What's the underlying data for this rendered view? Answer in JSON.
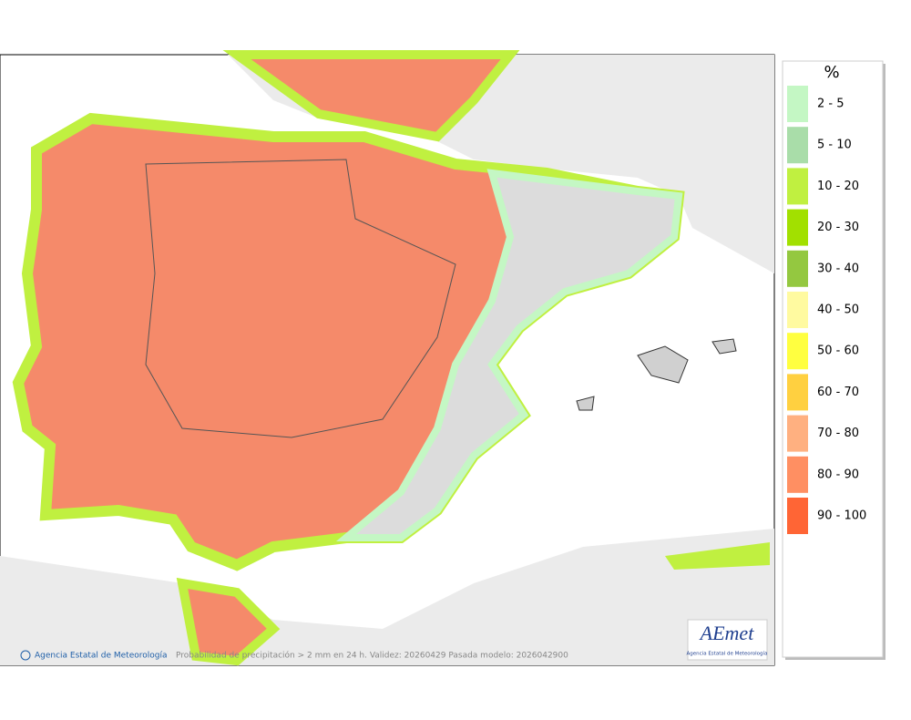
{
  "legend": {
    "title": "%",
    "items": [
      {
        "label": "2 - 5",
        "color": "#c4f7c4"
      },
      {
        "label": "5 - 10",
        "color": "#a9dda9"
      },
      {
        "label": "10 - 20",
        "color": "#c0f040"
      },
      {
        "label": "20 - 30",
        "color": "#a2e000"
      },
      {
        "label": "30 - 40",
        "color": "#94c840"
      },
      {
        "label": "40 - 50",
        "color": "#fffaa0"
      },
      {
        "label": "50 - 60",
        "color": "#ffff40"
      },
      {
        "label": "60 - 70",
        "color": "#ffd040"
      },
      {
        "label": "70 - 80",
        "color": "#ffb080"
      },
      {
        "label": "80 - 90",
        "color": "#ff8f62"
      },
      {
        "label": "90 - 100",
        "color": "#ff6535"
      }
    ]
  },
  "footer": {
    "credit": "Agencia Estatal de Meteorología",
    "caption": "Probabilidad de precipitación > 2 mm en 24 h. Validez: 20260429 Pasada modelo: 2026042900"
  },
  "logo": {
    "name": "AEmet",
    "subtitle": "Agencia Estatal de Meteorología"
  }
}
